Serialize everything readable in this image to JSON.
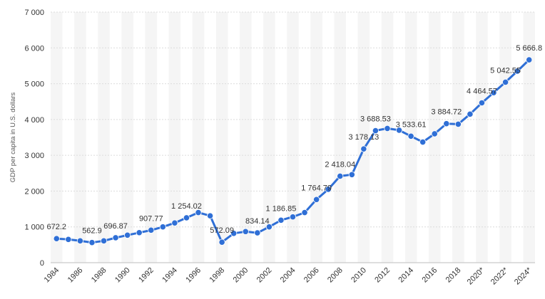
{
  "chart_data": {
    "type": "line",
    "title": "",
    "xlabel": "",
    "ylabel": "GDP per capita in U.S. dollars",
    "ylim": [
      0,
      7000
    ],
    "yticks": [
      0,
      1000,
      2000,
      3000,
      4000,
      5000,
      6000,
      7000
    ],
    "ytick_labels": [
      "0",
      "1 000",
      "2 000",
      "3 000",
      "4 000",
      "5 000",
      "6 000",
      "7 000"
    ],
    "xtick_labels": [
      "1984",
      "1986",
      "1988",
      "1990",
      "1992",
      "1994",
      "1996",
      "1998",
      "2000",
      "2002",
      "2004",
      "2006",
      "2008",
      "2010",
      "2012",
      "2014",
      "2016",
      "2018",
      "2020*",
      "2022*",
      "2024*"
    ],
    "grid": true,
    "color": "#2f6fd6",
    "series": [
      {
        "name": "GDP per capita",
        "x": [
          1984,
          1985,
          1986,
          1987,
          1988,
          1989,
          1990,
          1991,
          1992,
          1993,
          1994,
          1995,
          1996,
          1997,
          1998,
          1999,
          2000,
          2001,
          2002,
          2003,
          2004,
          2005,
          2006,
          2007,
          2008,
          2009,
          2010,
          2011,
          2012,
          2013,
          2014,
          2015,
          2016,
          2017,
          2018,
          2019,
          2020,
          2021,
          2022,
          2023,
          2024
        ],
        "values": [
          672.2,
          650,
          610,
          562.9,
          610,
          696.87,
          770,
          840,
          907.77,
          1000,
          1110,
          1254.02,
          1400,
          1310,
          572.09,
          820,
          870,
          834.14,
          1000,
          1186.85,
          1280,
          1400,
          1764.79,
          2050,
          2418.04,
          2460,
          3178.13,
          3688.53,
          3750,
          3700,
          3533.61,
          3370,
          3600,
          3884.72,
          3870,
          4150,
          4464.57,
          4750,
          5042.55,
          5350,
          5666.8
        ]
      }
    ],
    "data_labels": [
      {
        "x": 1984,
        "value": 672.2,
        "text": "672.2"
      },
      {
        "x": 1987,
        "value": 562.9,
        "text": "562.9"
      },
      {
        "x": 1989,
        "value": 696.87,
        "text": "696.87"
      },
      {
        "x": 1992,
        "value": 907.77,
        "text": "907.77"
      },
      {
        "x": 1995,
        "value": 1254.02,
        "text": "1 254.02"
      },
      {
        "x": 1998,
        "value": 572.09,
        "text": "572.09"
      },
      {
        "x": 2001,
        "value": 834.14,
        "text": "834.14"
      },
      {
        "x": 2003,
        "value": 1186.85,
        "text": "1 186.85"
      },
      {
        "x": 2006,
        "value": 1764.79,
        "text": "1 764.79"
      },
      {
        "x": 2008,
        "value": 2418.04,
        "text": "2 418.04"
      },
      {
        "x": 2010,
        "value": 3178.13,
        "text": "3 178.13"
      },
      {
        "x": 2011,
        "value": 3688.53,
        "text": "3 688.53"
      },
      {
        "x": 2014,
        "value": 3533.61,
        "text": "3 533.61"
      },
      {
        "x": 2017,
        "value": 3884.72,
        "text": "3 884.72"
      },
      {
        "x": 2020,
        "value": 4464.57,
        "text": "4 464.57"
      },
      {
        "x": 2022,
        "value": 5042.55,
        "text": "5 042.55"
      },
      {
        "x": 2024,
        "value": 5666.8,
        "text": "5 666.8"
      }
    ]
  }
}
